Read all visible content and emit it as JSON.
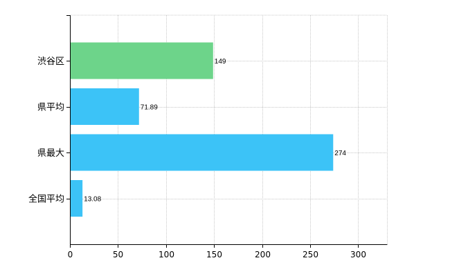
{
  "chart_data": {
    "type": "bar",
    "orientation": "horizontal",
    "categories": [
      "渋谷区",
      "県平均",
      "県最大",
      "全国平均"
    ],
    "values": [
      149,
      71.89,
      274,
      13.08
    ],
    "value_labels": [
      "149",
      "71.89",
      "274",
      "13.08"
    ],
    "bar_colors": [
      "#6dd48a",
      "#3cc3f7",
      "#3cc3f7",
      "#3cc3f7"
    ],
    "xlim": [
      0,
      330
    ],
    "xticks": [
      0,
      50,
      100,
      150,
      200,
      250,
      300
    ],
    "xtick_labels": [
      "0",
      "50",
      "100",
      "150",
      "200",
      "250",
      "300"
    ],
    "grid": true,
    "legend": "none",
    "title": "",
    "xlabel": "",
    "ylabel": ""
  }
}
